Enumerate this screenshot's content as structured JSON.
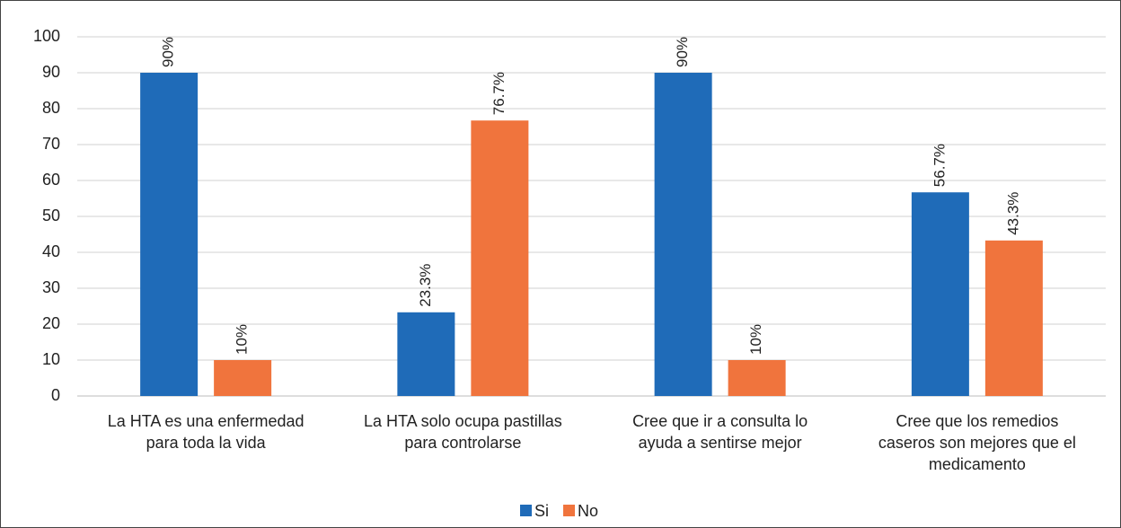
{
  "chart_data": {
    "type": "bar",
    "categories": [
      "La HTA es una enfermedad para toda la vida",
      "La HTA solo ocupa pastillas para controlarse",
      "Cree que ir a consulta lo ayuda a sentirse mejor",
      "Cree que los remedios caseros son mejores que el medicamento"
    ],
    "series": [
      {
        "name": "Si",
        "color": "#1f6bb8",
        "values": [
          90,
          23.3,
          90,
          56.7
        ],
        "value_labels": [
          "90%",
          "23.3%",
          "90%",
          "56.7%"
        ]
      },
      {
        "name": "No",
        "color": "#f0743d",
        "values": [
          10,
          76.7,
          10,
          43.3
        ],
        "value_labels": [
          "10%",
          "76.7%",
          "10%",
          "43.3%"
        ]
      }
    ],
    "ylim": [
      0,
      100
    ],
    "yticks": [
      0,
      10,
      20,
      30,
      40,
      50,
      60,
      70,
      80,
      90,
      100
    ],
    "grid": true,
    "legend": "bottom"
  }
}
